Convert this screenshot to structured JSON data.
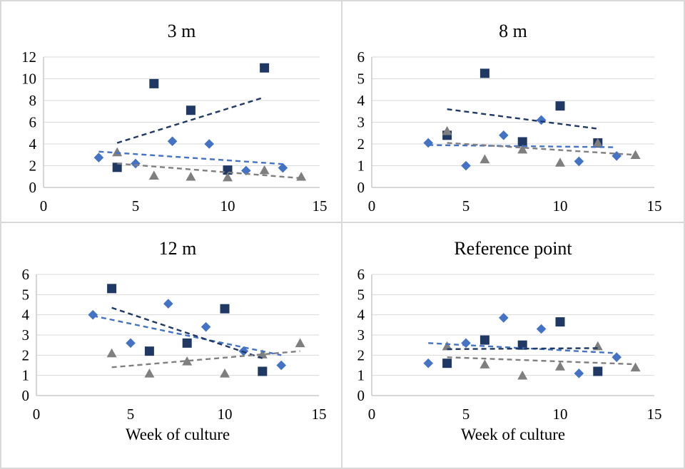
{
  "figure": {
    "background": "#ffffff",
    "border_color": "#d9d9d9",
    "gridline_color": "#d9d9d9",
    "axis_line_color": "#bfbfbf"
  },
  "chart_data": [
    {
      "type": "scatter",
      "title": "3 m",
      "xlabel": "",
      "ylabel": "",
      "xlim": [
        0,
        15
      ],
      "xticks": [
        0,
        5,
        10,
        15
      ],
      "ylim": [
        0,
        12
      ],
      "yticks": [
        0,
        2,
        4,
        6,
        8,
        10,
        12
      ],
      "grid": true,
      "legend": "none",
      "series": [
        {
          "name": "blue-diamond",
          "marker": "diamond",
          "color": "#4472C4",
          "points": [
            [
              3,
              2.75
            ],
            [
              5,
              2.2
            ],
            [
              7,
              4.25
            ],
            [
              9,
              4.0
            ],
            [
              11,
              1.55
            ],
            [
              13,
              1.8
            ]
          ],
          "trendline": {
            "style": "dashed",
            "from": [
              3,
              3.3
            ],
            "to": [
              13,
              2.15
            ]
          }
        },
        {
          "name": "navy-square",
          "marker": "square",
          "color": "#1F3864",
          "points": [
            [
              4,
              1.85
            ],
            [
              6,
              9.55
            ],
            [
              8,
              7.1
            ],
            [
              10,
              1.6
            ],
            [
              12,
              11.0
            ]
          ],
          "trendline": {
            "style": "dashed",
            "from": [
              4,
              4.1
            ],
            "to": [
              12,
              8.3
            ]
          }
        },
        {
          "name": "gray-triangle",
          "marker": "triangle",
          "color": "#7F7F7F",
          "points": [
            [
              4,
              3.25
            ],
            [
              6,
              1.1
            ],
            [
              8,
              1.0
            ],
            [
              10,
              0.95
            ],
            [
              12,
              1.6
            ],
            [
              14,
              1.0
            ]
          ],
          "trendline": {
            "style": "dashed",
            "from": [
              4,
              2.2
            ],
            "to": [
              14,
              0.85
            ]
          }
        }
      ]
    },
    {
      "type": "scatter",
      "title": "8 m",
      "xlabel": "",
      "ylabel": "",
      "xlim": [
        0,
        15
      ],
      "xticks": [
        0,
        5,
        10,
        15
      ],
      "ylim": [
        0,
        6
      ],
      "yticks": [
        0,
        1,
        2,
        3,
        4,
        5,
        6
      ],
      "grid": true,
      "legend": "none",
      "series": [
        {
          "name": "blue-diamond",
          "marker": "diamond",
          "color": "#4472C4",
          "points": [
            [
              3,
              2.05
            ],
            [
              5,
              1.0
            ],
            [
              7,
              2.4
            ],
            [
              9,
              3.1
            ],
            [
              11,
              1.2
            ],
            [
              13,
              1.45
            ]
          ],
          "trendline": {
            "style": "dashed",
            "from": [
              3,
              1.95
            ],
            "to": [
              13,
              1.85
            ]
          }
        },
        {
          "name": "navy-square",
          "marker": "square",
          "color": "#1F3864",
          "points": [
            [
              4,
              2.4
            ],
            [
              6,
              5.25
            ],
            [
              8,
              2.1
            ],
            [
              10,
              3.75
            ],
            [
              12,
              2.05
            ]
          ],
          "trendline": {
            "style": "dashed",
            "from": [
              4,
              3.6
            ],
            "to": [
              12,
              2.7
            ]
          }
        },
        {
          "name": "gray-triangle",
          "marker": "triangle",
          "color": "#7F7F7F",
          "points": [
            [
              4,
              2.6
            ],
            [
              6,
              1.3
            ],
            [
              8,
              1.75
            ],
            [
              10,
              1.15
            ],
            [
              12,
              2.05
            ],
            [
              14,
              1.5
            ]
          ],
          "trendline": {
            "style": "dashed",
            "from": [
              4,
              2.05
            ],
            "to": [
              14,
              1.5
            ]
          }
        }
      ]
    },
    {
      "type": "scatter",
      "title": "12 m",
      "xlabel": "Week of culture",
      "ylabel": "",
      "xlim": [
        0,
        15
      ],
      "xticks": [
        0,
        5,
        10,
        15
      ],
      "ylim": [
        0,
        6
      ],
      "yticks": [
        0,
        1,
        2,
        3,
        4,
        5,
        6
      ],
      "grid": true,
      "legend": "none",
      "series": [
        {
          "name": "blue-diamond",
          "marker": "diamond",
          "color": "#4472C4",
          "points": [
            [
              3,
              4.0
            ],
            [
              5,
              2.6
            ],
            [
              7,
              4.55
            ],
            [
              9,
              3.4
            ],
            [
              11,
              2.2
            ],
            [
              13,
              1.5
            ]
          ],
          "trendline": {
            "style": "dashed",
            "from": [
              3,
              3.95
            ],
            "to": [
              13,
              2.0
            ]
          }
        },
        {
          "name": "navy-square",
          "marker": "square",
          "color": "#1F3864",
          "points": [
            [
              4,
              5.3
            ],
            [
              6,
              2.2
            ],
            [
              8,
              2.6
            ],
            [
              10,
              4.3
            ],
            [
              12,
              1.2
            ]
          ],
          "trendline": {
            "style": "dashed",
            "from": [
              4,
              4.35
            ],
            "to": [
              12,
              1.85
            ]
          }
        },
        {
          "name": "gray-triangle",
          "marker": "triangle",
          "color": "#7F7F7F",
          "points": [
            [
              4,
              2.1
            ],
            [
              6,
              1.1
            ],
            [
              8,
              1.7
            ],
            [
              10,
              1.1
            ],
            [
              12,
              2.05
            ],
            [
              14,
              2.6
            ]
          ],
          "trendline": {
            "style": "dashed",
            "from": [
              4,
              1.4
            ],
            "to": [
              14,
              2.2
            ]
          }
        }
      ]
    },
    {
      "type": "scatter",
      "title": "Reference point",
      "xlabel": "Week of culture",
      "ylabel": "",
      "xlim": [
        0,
        15
      ],
      "xticks": [
        0,
        5,
        10,
        15
      ],
      "ylim": [
        0,
        6
      ],
      "yticks": [
        0,
        1,
        2,
        3,
        4,
        5,
        6
      ],
      "grid": true,
      "legend": "none",
      "series": [
        {
          "name": "blue-diamond",
          "marker": "diamond",
          "color": "#4472C4",
          "points": [
            [
              3,
              1.6
            ],
            [
              5,
              2.6
            ],
            [
              7,
              3.85
            ],
            [
              9,
              3.3
            ],
            [
              11,
              1.1
            ],
            [
              13,
              1.9
            ]
          ],
          "trendline": {
            "style": "dashed",
            "from": [
              3,
              2.6
            ],
            "to": [
              13,
              2.1
            ]
          }
        },
        {
          "name": "navy-square",
          "marker": "square",
          "color": "#1F3864",
          "points": [
            [
              4,
              1.6
            ],
            [
              6,
              2.75
            ],
            [
              8,
              2.5
            ],
            [
              10,
              3.65
            ],
            [
              12,
              1.2
            ]
          ],
          "trendline": {
            "style": "dashed",
            "from": [
              4,
              2.3
            ],
            "to": [
              12,
              2.35
            ]
          }
        },
        {
          "name": "gray-triangle",
          "marker": "triangle",
          "color": "#7F7F7F",
          "points": [
            [
              4,
              2.45
            ],
            [
              6,
              1.55
            ],
            [
              8,
              1.0
            ],
            [
              10,
              1.45
            ],
            [
              12,
              2.45
            ],
            [
              14,
              1.4
            ]
          ],
          "trendline": {
            "style": "dashed",
            "from": [
              4,
              1.9
            ],
            "to": [
              14,
              1.55
            ]
          }
        }
      ]
    }
  ]
}
